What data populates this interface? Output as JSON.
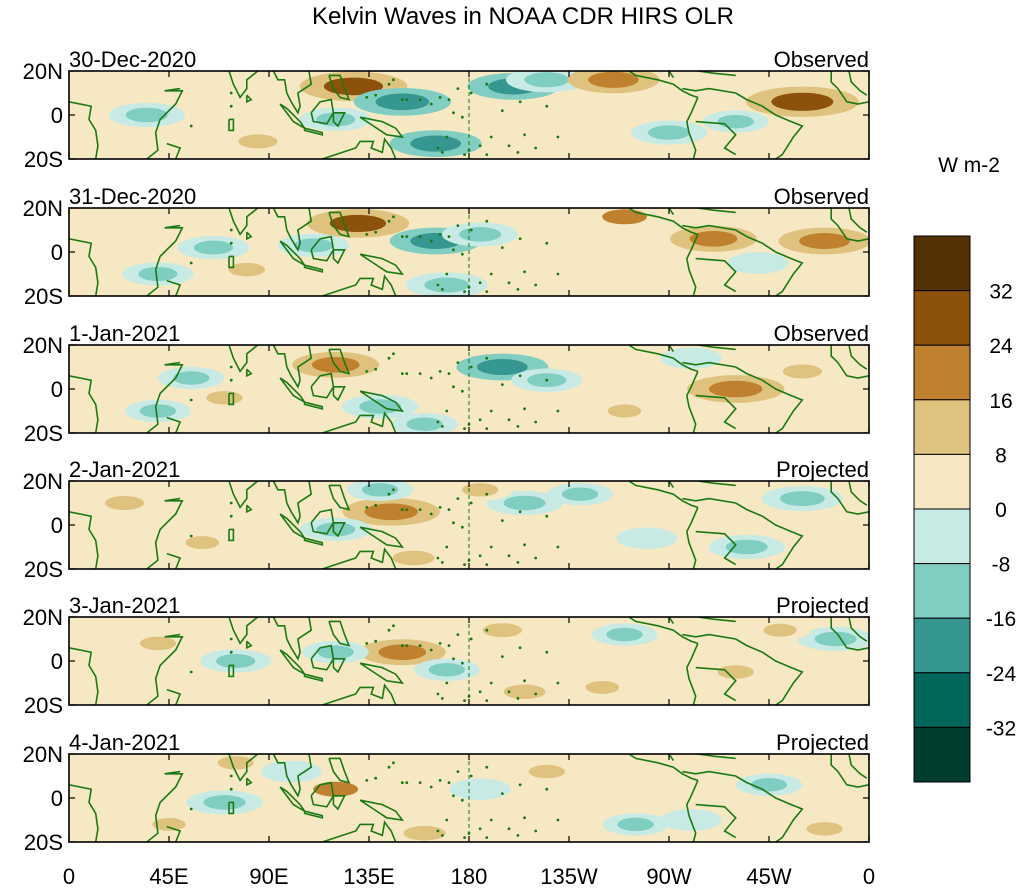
{
  "chart_data": {
    "type": "heatmap",
    "title": "Kelvin Waves in NOAA CDR HIRS OLR",
    "colorbar": {
      "units": "W m-2",
      "levels": [
        -40,
        -32,
        -24,
        -16,
        -8,
        0,
        8,
        16,
        24,
        32,
        40
      ],
      "tick_labels": [
        "32",
        "24",
        "16",
        "8",
        "0",
        "-8",
        "-16",
        "-24",
        "-32"
      ],
      "colors": [
        "#003d2f",
        "#00665a",
        "#35978f",
        "#80cdc1",
        "#c7eae5",
        "#f6e8c3",
        "#dfc27d",
        "#bf812d",
        "#8c510a",
        "#543005"
      ]
    },
    "x_axis": {
      "tick_labels": [
        "0",
        "45E",
        "90E",
        "135E",
        "180",
        "135W",
        "90W",
        "45W",
        "0"
      ],
      "range_lon": [
        0,
        360
      ]
    },
    "y_axis": {
      "tick_labels": [
        "20N",
        "0",
        "20S"
      ],
      "range_lat": [
        -20,
        20
      ]
    },
    "panels": [
      {
        "date": "30-Dec-2020",
        "status": "Observed",
        "anomalies": [
          {
            "lon": 128,
            "lat": 13,
            "value": 26
          },
          {
            "lon": 150,
            "lat": 6,
            "value": -22
          },
          {
            "lon": 200,
            "lat": 13,
            "value": -20
          },
          {
            "lon": 215,
            "lat": 16,
            "value": -16
          },
          {
            "lon": 245,
            "lat": 16,
            "value": 20
          },
          {
            "lon": 330,
            "lat": 6,
            "value": 28
          },
          {
            "lon": 35,
            "lat": 0,
            "value": -14
          },
          {
            "lon": 85,
            "lat": -12,
            "value": 12
          },
          {
            "lon": 165,
            "lat": -13,
            "value": -20
          },
          {
            "lon": 270,
            "lat": -8,
            "value": -14
          },
          {
            "lon": 120,
            "lat": -2,
            "value": -12
          },
          {
            "lon": 300,
            "lat": -3,
            "value": -10
          }
        ]
      },
      {
        "date": "31-Dec-2020",
        "status": "Observed",
        "anomalies": [
          {
            "lon": 130,
            "lat": 13,
            "value": 24
          },
          {
            "lon": 165,
            "lat": 5,
            "value": -20
          },
          {
            "lon": 185,
            "lat": 8,
            "value": -14
          },
          {
            "lon": 250,
            "lat": 16,
            "value": 16
          },
          {
            "lon": 290,
            "lat": 6,
            "value": 18
          },
          {
            "lon": 340,
            "lat": 5,
            "value": 20
          },
          {
            "lon": 65,
            "lat": 2,
            "value": -12
          },
          {
            "lon": 40,
            "lat": -10,
            "value": -12
          },
          {
            "lon": 170,
            "lat": -15,
            "value": -16
          },
          {
            "lon": 80,
            "lat": -8,
            "value": 10
          },
          {
            "lon": 110,
            "lat": 3,
            "value": -12
          },
          {
            "lon": 310,
            "lat": -5,
            "value": -8
          }
        ]
      },
      {
        "date": "1-Jan-2021",
        "status": "Observed",
        "anomalies": [
          {
            "lon": 120,
            "lat": 11,
            "value": 18
          },
          {
            "lon": 195,
            "lat": 10,
            "value": -20
          },
          {
            "lon": 215,
            "lat": 4,
            "value": -12
          },
          {
            "lon": 300,
            "lat": 0,
            "value": 22
          },
          {
            "lon": 330,
            "lat": 8,
            "value": 12
          },
          {
            "lon": 55,
            "lat": 5,
            "value": -10
          },
          {
            "lon": 40,
            "lat": -10,
            "value": -10
          },
          {
            "lon": 140,
            "lat": -8,
            "value": -14
          },
          {
            "lon": 160,
            "lat": -16,
            "value": -10
          },
          {
            "lon": 70,
            "lat": -4,
            "value": 10
          },
          {
            "lon": 250,
            "lat": -10,
            "value": 8
          },
          {
            "lon": 280,
            "lat": 14,
            "value": -8
          }
        ]
      },
      {
        "date": "2-Jan-2021",
        "status": "Projected",
        "anomalies": [
          {
            "lon": 145,
            "lat": 6,
            "value": 22
          },
          {
            "lon": 140,
            "lat": 16,
            "value": -10
          },
          {
            "lon": 205,
            "lat": 10,
            "value": -14
          },
          {
            "lon": 230,
            "lat": 14,
            "value": -10
          },
          {
            "lon": 330,
            "lat": 12,
            "value": -16
          },
          {
            "lon": 305,
            "lat": -10,
            "value": -14
          },
          {
            "lon": 25,
            "lat": 10,
            "value": 12
          },
          {
            "lon": 120,
            "lat": -2,
            "value": -12
          },
          {
            "lon": 155,
            "lat": -15,
            "value": 14
          },
          {
            "lon": 260,
            "lat": -6,
            "value": -8
          },
          {
            "lon": 60,
            "lat": -8,
            "value": 8
          },
          {
            "lon": 185,
            "lat": 16,
            "value": 10
          }
        ]
      },
      {
        "date": "3-Jan-2021",
        "status": "Projected",
        "anomalies": [
          {
            "lon": 150,
            "lat": 4,
            "value": 18
          },
          {
            "lon": 195,
            "lat": 14,
            "value": 12
          },
          {
            "lon": 40,
            "lat": 8,
            "value": 10
          },
          {
            "lon": 250,
            "lat": 12,
            "value": -10
          },
          {
            "lon": 205,
            "lat": -14,
            "value": 14
          },
          {
            "lon": 300,
            "lat": -5,
            "value": 10
          },
          {
            "lon": 345,
            "lat": 10,
            "value": -14
          },
          {
            "lon": 75,
            "lat": 0,
            "value": -12
          },
          {
            "lon": 170,
            "lat": -4,
            "value": -10
          },
          {
            "lon": 120,
            "lat": 4,
            "value": -10
          },
          {
            "lon": 240,
            "lat": -12,
            "value": 8
          },
          {
            "lon": 320,
            "lat": 14,
            "value": 8
          }
        ]
      },
      {
        "date": "4-Jan-2021",
        "status": "Projected",
        "anomalies": [
          {
            "lon": 120,
            "lat": 4,
            "value": 16
          },
          {
            "lon": 75,
            "lat": 16,
            "value": 10
          },
          {
            "lon": 70,
            "lat": -2,
            "value": -14
          },
          {
            "lon": 215,
            "lat": 12,
            "value": 10
          },
          {
            "lon": 255,
            "lat": -12,
            "value": -10
          },
          {
            "lon": 315,
            "lat": 6,
            "value": -10
          },
          {
            "lon": 280,
            "lat": -10,
            "value": -8
          },
          {
            "lon": 160,
            "lat": -16,
            "value": 14
          },
          {
            "lon": 185,
            "lat": 4,
            "value": -8
          },
          {
            "lon": 45,
            "lat": -12,
            "value": 8
          },
          {
            "lon": 340,
            "lat": -14,
            "value": 10
          },
          {
            "lon": 100,
            "lat": 12,
            "value": -8
          }
        ]
      }
    ]
  }
}
